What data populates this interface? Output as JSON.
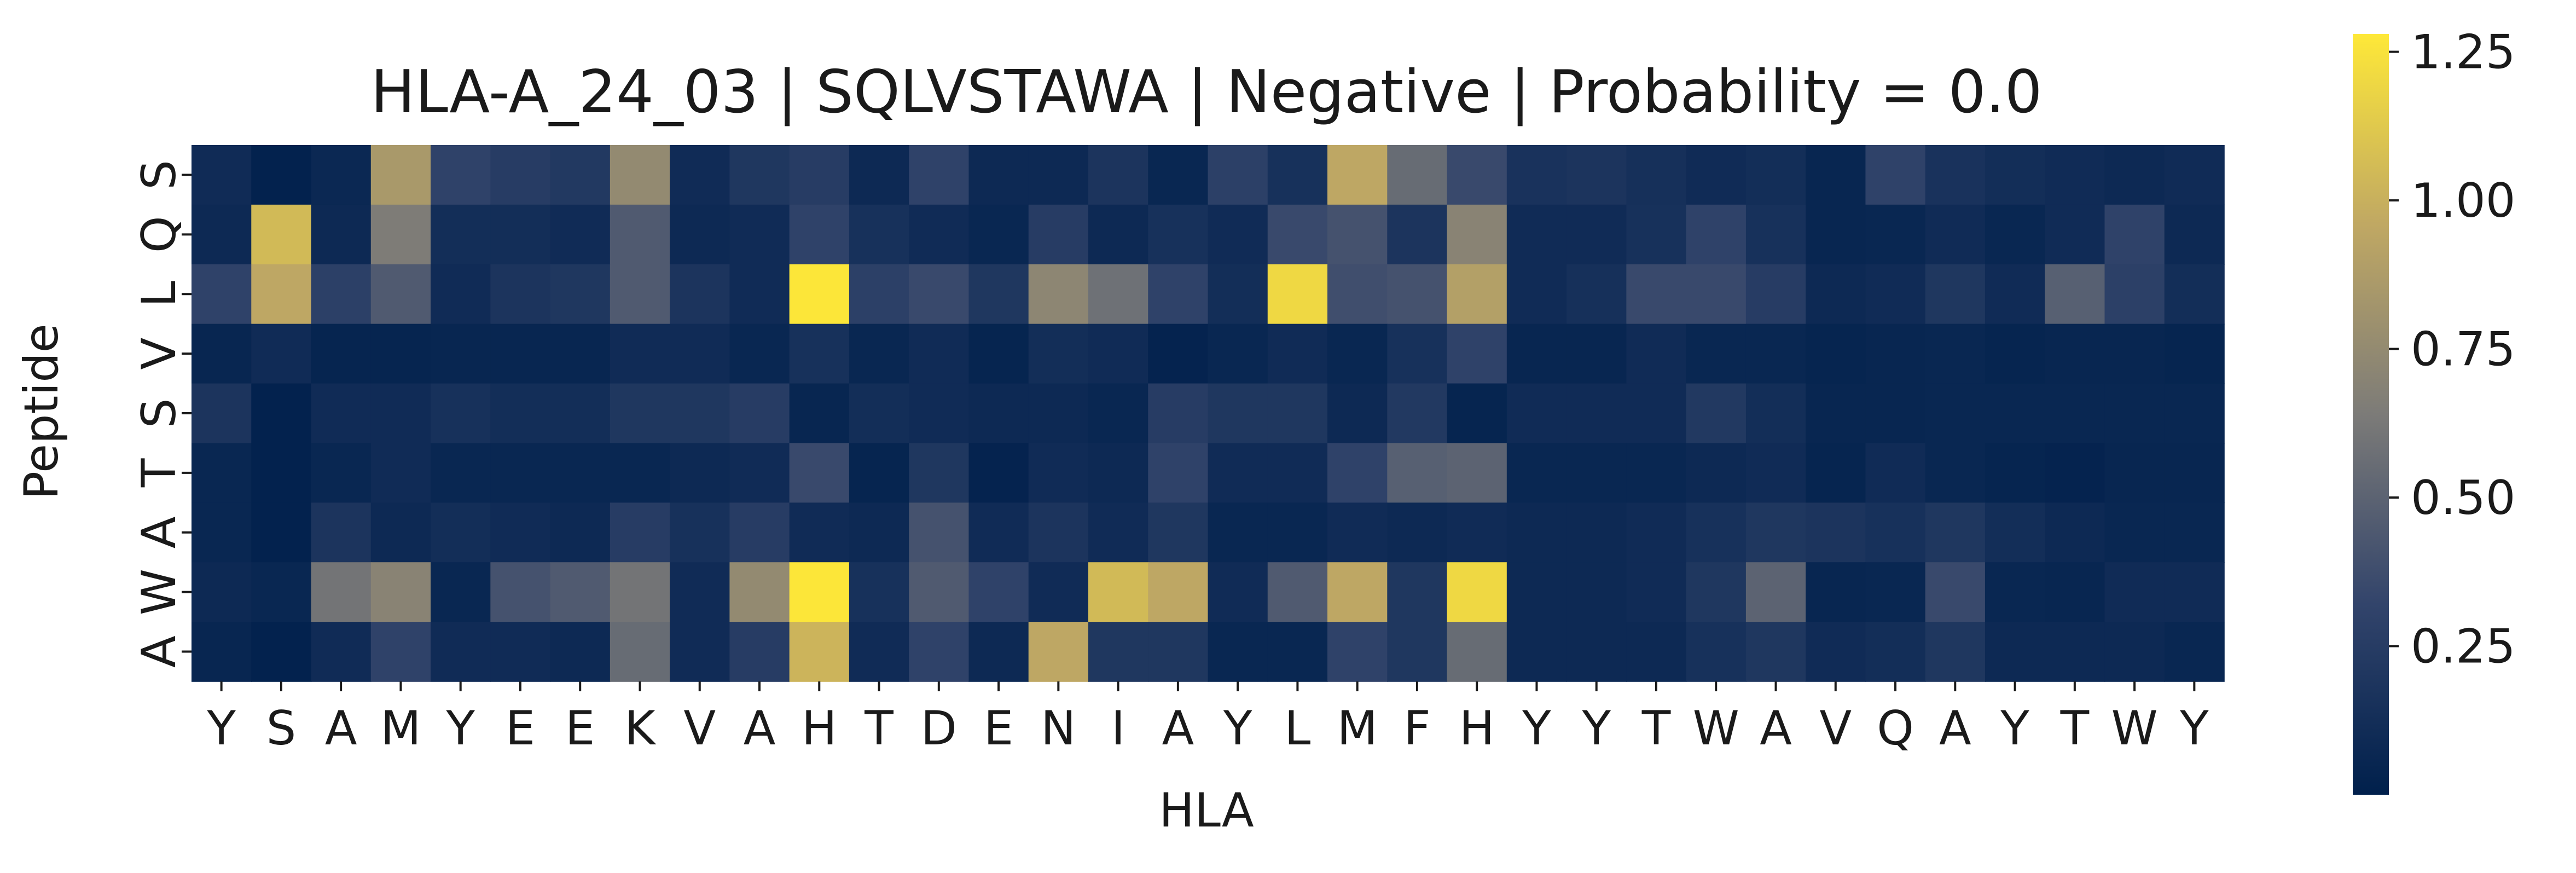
{
  "chart_data": {
    "type": "heatmap",
    "title": "HLA-A_24_03 | SQLVSTAWA | Negative | Probability = 0.0",
    "xlabel": "HLA",
    "ylabel": "Peptide",
    "x_categories": [
      "Y",
      "S",
      "A",
      "M",
      "Y",
      "E",
      "E",
      "K",
      "V",
      "A",
      "H",
      "T",
      "D",
      "E",
      "N",
      "I",
      "A",
      "Y",
      "L",
      "M",
      "F",
      "H",
      "Y",
      "Y",
      "T",
      "W",
      "A",
      "V",
      "Q",
      "A",
      "Y",
      "T",
      "W",
      "Y"
    ],
    "y_categories": [
      "S",
      "Q",
      "L",
      "V",
      "S",
      "T",
      "A",
      "W",
      "A"
    ],
    "values": [
      [
        0.1,
        0.02,
        0.07,
        0.85,
        0.3,
        0.25,
        0.22,
        0.75,
        0.1,
        0.2,
        0.25,
        0.08,
        0.3,
        0.08,
        0.08,
        0.18,
        0.06,
        0.28,
        0.15,
        0.95,
        0.55,
        0.35,
        0.16,
        0.18,
        0.14,
        0.1,
        0.12,
        0.05,
        0.3,
        0.16,
        0.12,
        0.1,
        0.08,
        0.1
      ],
      [
        0.08,
        1.05,
        0.08,
        0.65,
        0.12,
        0.12,
        0.1,
        0.45,
        0.08,
        0.1,
        0.3,
        0.15,
        0.1,
        0.06,
        0.25,
        0.08,
        0.15,
        0.1,
        0.35,
        0.4,
        0.18,
        0.7,
        0.1,
        0.1,
        0.15,
        0.3,
        0.15,
        0.05,
        0.06,
        0.1,
        0.06,
        0.1,
        0.3,
        0.08
      ],
      [
        0.3,
        0.95,
        0.28,
        0.45,
        0.1,
        0.18,
        0.2,
        0.45,
        0.18,
        0.1,
        1.27,
        0.28,
        0.35,
        0.2,
        0.72,
        0.58,
        0.3,
        0.12,
        1.2,
        0.38,
        0.4,
        0.9,
        0.1,
        0.14,
        0.35,
        0.35,
        0.25,
        0.08,
        0.1,
        0.2,
        0.1,
        0.48,
        0.28,
        0.12
      ],
      [
        0.05,
        0.1,
        0.04,
        0.04,
        0.05,
        0.05,
        0.05,
        0.1,
        0.1,
        0.06,
        0.15,
        0.06,
        0.1,
        0.04,
        0.12,
        0.1,
        0.03,
        0.06,
        0.1,
        0.06,
        0.15,
        0.3,
        0.05,
        0.05,
        0.1,
        0.06,
        0.06,
        0.04,
        0.05,
        0.06,
        0.04,
        0.05,
        0.05,
        0.04
      ],
      [
        0.18,
        0.02,
        0.1,
        0.1,
        0.15,
        0.12,
        0.12,
        0.2,
        0.2,
        0.25,
        0.05,
        0.12,
        0.1,
        0.08,
        0.08,
        0.06,
        0.25,
        0.2,
        0.2,
        0.08,
        0.22,
        0.04,
        0.1,
        0.1,
        0.1,
        0.22,
        0.12,
        0.05,
        0.05,
        0.06,
        0.06,
        0.06,
        0.06,
        0.06
      ],
      [
        0.06,
        0.02,
        0.06,
        0.1,
        0.06,
        0.06,
        0.06,
        0.06,
        0.08,
        0.1,
        0.35,
        0.04,
        0.2,
        0.03,
        0.1,
        0.08,
        0.3,
        0.1,
        0.1,
        0.3,
        0.48,
        0.5,
        0.06,
        0.06,
        0.06,
        0.08,
        0.1,
        0.04,
        0.1,
        0.06,
        0.04,
        0.03,
        0.05,
        0.05
      ],
      [
        0.06,
        0.02,
        0.18,
        0.08,
        0.12,
        0.1,
        0.08,
        0.25,
        0.15,
        0.25,
        0.1,
        0.08,
        0.4,
        0.1,
        0.18,
        0.1,
        0.2,
        0.06,
        0.06,
        0.1,
        0.08,
        0.1,
        0.08,
        0.08,
        0.1,
        0.15,
        0.2,
        0.18,
        0.15,
        0.2,
        0.12,
        0.08,
        0.06,
        0.06
      ],
      [
        0.08,
        0.06,
        0.6,
        0.7,
        0.06,
        0.4,
        0.45,
        0.6,
        0.1,
        0.75,
        1.27,
        0.15,
        0.45,
        0.3,
        0.1,
        1.05,
        0.95,
        0.1,
        0.45,
        0.95,
        0.2,
        1.2,
        0.08,
        0.08,
        0.1,
        0.2,
        0.5,
        0.05,
        0.06,
        0.35,
        0.06,
        0.05,
        0.1,
        0.1
      ],
      [
        0.05,
        0.02,
        0.1,
        0.3,
        0.1,
        0.1,
        0.08,
        0.55,
        0.1,
        0.25,
        1.02,
        0.1,
        0.3,
        0.08,
        0.95,
        0.2,
        0.2,
        0.06,
        0.06,
        0.3,
        0.2,
        0.55,
        0.08,
        0.08,
        0.08,
        0.15,
        0.2,
        0.1,
        0.12,
        0.2,
        0.08,
        0.08,
        0.08,
        0.06
      ]
    ],
    "colormap": "cividis",
    "colorbar": {
      "ticks": [
        "0.25",
        "0.50",
        "0.75",
        "1.00",
        "1.25"
      ],
      "tick_values": [
        0.25,
        0.5,
        0.75,
        1.0,
        1.25
      ],
      "range": [
        0.0,
        1.28
      ]
    }
  }
}
